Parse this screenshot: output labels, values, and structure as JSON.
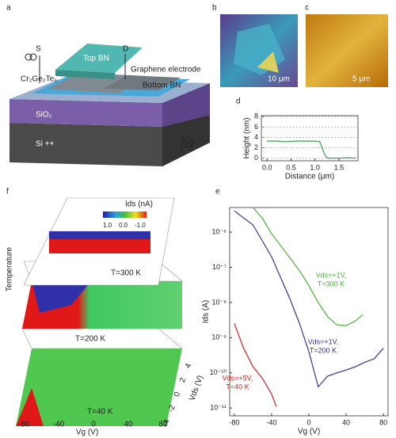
{
  "figure": {
    "panel_labels": [
      "a",
      "b",
      "c",
      "d",
      "e",
      "f"
    ],
    "a": {
      "source": "S",
      "drain": "D",
      "top": "Top BN",
      "electrode": "Graphene electrode",
      "flake": "Cr₂Ge₂Te₆",
      "bottom": "Bottom BN",
      "oxide": "SiO₂",
      "substrate": "Si ++",
      "gate": "Vg"
    },
    "b": {
      "scale_bar": "10 μm"
    },
    "c": {
      "scale_bar": "5 μm"
    },
    "f": {
      "colorbar_title": "Ids (nA)",
      "colorbar_ticks": [
        "1.0",
        "0.0",
        "-1.0"
      ],
      "planes": [
        "T=300 K",
        "T=200 K",
        "T=40 K"
      ],
      "z_label": "Temperature",
      "x_label": "Vg (V)",
      "y_label": "Vds (V)",
      "x_ticks": [
        "-80",
        "-40",
        "0",
        "40",
        "80"
      ],
      "y_ticks": [
        "4",
        "2",
        "0",
        "-2",
        "-4"
      ]
    }
  },
  "chart_data": [
    {
      "type": "line",
      "xlabel": "Distance (μm)",
      "ylabel": "Height (nm)",
      "series": [
        {
          "color": "#3d9a52",
          "x": [
            0,
            0.2,
            0.4,
            0.6,
            0.8,
            1.0,
            1.1,
            1.15,
            1.2,
            1.25,
            1.3,
            1.5,
            1.7,
            1.85
          ],
          "values": [
            3.3,
            3.3,
            3.2,
            3.3,
            3.3,
            3.3,
            3.2,
            2.0,
            0.8,
            0.1,
            0,
            0,
            0.1,
            0
          ]
        }
      ],
      "xlim": [
        -0.12,
        1.9
      ],
      "ylim": [
        -0.5,
        8.2
      ],
      "xticks": [
        {
          "value": 0,
          "label": "0.0"
        },
        {
          "value": 0.5,
          "label": "0.5"
        },
        {
          "value": 1,
          "label": "1.0"
        },
        {
          "value": 1.5,
          "label": "1.5"
        }
      ],
      "yticks": [
        0,
        2,
        4,
        6,
        8
      ],
      "grid": true
    },
    {
      "type": "line",
      "xlabel": "Vg (V)",
      "ylabel": "Ids (A)",
      "log_y": true,
      "series": [
        {
          "color": "#4caf3a",
          "x": [
            -60,
            -50,
            -40,
            -30,
            -20,
            -10,
            0,
            10,
            20,
            30,
            40,
            50,
            58
          ],
          "values": [
            5e-06,
            2.5e-06,
            9e-07,
            4e-07,
            1.8e-07,
            8e-08,
            3e-08,
            1e-08,
            4e-09,
            2.3e-09,
            2.2e-09,
            3e-09,
            4.5e-09
          ]
        },
        {
          "color": "#3b2f8f",
          "x": [
            -80,
            -60,
            -40,
            -20,
            -10,
            0,
            10,
            20,
            30,
            40,
            50,
            60,
            70,
            80
          ],
          "values": [
            4e-06,
            1.6e-06,
            2e-07,
            1.2e-08,
            2.5e-09,
            4e-10,
            4e-11,
            8e-11,
            1e-10,
            1.2e-10,
            1.5e-10,
            2e-10,
            2.5e-10,
            5e-10
          ]
        },
        {
          "color": "#d42020",
          "x": [
            -80,
            -70,
            -60,
            -50,
            -40,
            -35
          ],
          "values": [
            2.5e-09,
            5e-10,
            1.5e-10,
            7e-11,
            2.5e-11,
            1.1e-11
          ]
        }
      ],
      "annotations": [
        {
          "lines": [
            "Vds=+1V,",
            "T=300 K"
          ],
          "color": "#4caf3a"
        },
        {
          "lines": [
            "Vds=+1V,",
            "T=200 K"
          ],
          "color": "#3b2f8f"
        },
        {
          "lines": [
            "Vds=+5V,",
            "T=40 K"
          ],
          "color": "#d42020"
        }
      ],
      "xlim": [
        -85,
        85
      ],
      "ylim": [
        6e-12,
        5e-06
      ],
      "xticks": [
        -80,
        -40,
        0,
        40,
        80
      ],
      "yticks": [
        {
          "value": 1e-11,
          "label": "10⁻¹¹"
        },
        {
          "value": 1e-10,
          "label": "10⁻¹⁰"
        },
        {
          "value": 1e-09,
          "label": "10⁻⁹"
        },
        {
          "value": 1e-08,
          "label": "10⁻⁸"
        },
        {
          "value": 1e-07,
          "label": "10⁻⁷"
        },
        {
          "value": 1e-06,
          "label": "10⁻⁶"
        }
      ],
      "grid": false
    }
  ]
}
